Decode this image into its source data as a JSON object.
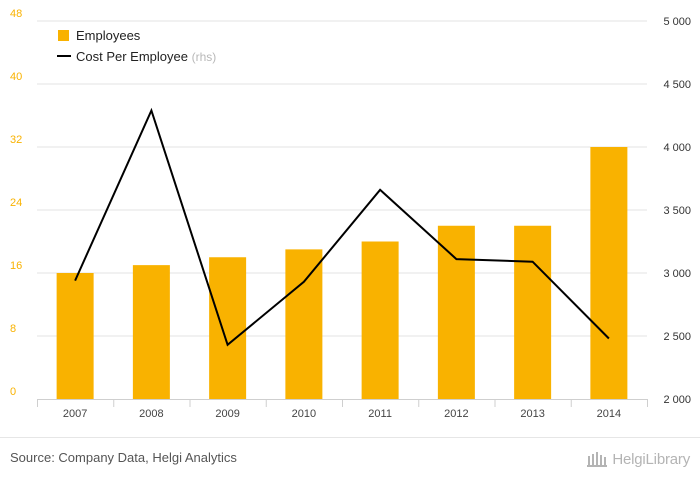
{
  "chart_data": {
    "type": "bar",
    "categories": [
      "2007",
      "2008",
      "2009",
      "2010",
      "2011",
      "2012",
      "2013",
      "2014"
    ],
    "series": [
      {
        "name": "Employees",
        "kind": "bar",
        "axis": "left",
        "color": "#f9b200",
        "values": [
          16,
          17,
          18,
          19,
          20,
          22,
          22,
          32
        ]
      },
      {
        "name": "Cost Per Employee",
        "name_suffix": "(rhs)",
        "kind": "line",
        "axis": "right",
        "color": "#000000",
        "values": [
          2940,
          4290,
          2430,
          2930,
          3660,
          3110,
          3090,
          2480
        ]
      }
    ],
    "y_left": {
      "min": 0,
      "max": 48,
      "ticks": [
        "0",
        "8",
        "16",
        "24",
        "32",
        "40",
        "48"
      ],
      "color": "#f9b200"
    },
    "y_right": {
      "min": 2000,
      "max": 5000,
      "ticks": [
        "2 000",
        "2 500",
        "3 000",
        "3 500",
        "4 000",
        "4 500",
        "5 000"
      ]
    },
    "grid": true,
    "legend": "top-left"
  },
  "footer": {
    "source": "Source: Company Data, Helgi Analytics",
    "brand": "HelgiLibrary"
  }
}
